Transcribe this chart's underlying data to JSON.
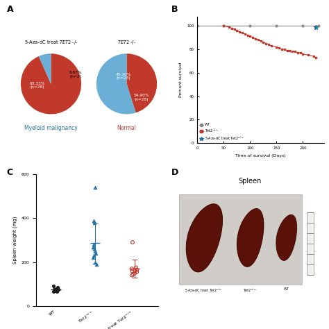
{
  "panel_A_label": "A",
  "panel_B_label": "B",
  "panel_C_label": "C",
  "panel_D_label": "D",
  "pie1_title": "5-Aza-dC treat ",
  "pie1_title_italic": "TET2",
  "pie1_title_end": " -/-",
  "pie1_subtitle": "Myeloid malignancy",
  "pie1_sizes": [
    93.33,
    6.67
  ],
  "pie1_colors": [
    "#c0392b",
    "#6baed6"
  ],
  "pie1_startangle": 90,
  "pie2_title_italic": "TET2",
  "pie2_title_end": " -/-",
  "pie2_subtitle": "Normal",
  "pie2_sizes": [
    45.1,
    54.9
  ],
  "pie2_colors": [
    "#c0392b",
    "#6baed6"
  ],
  "pie2_startangle": 90,
  "survival_xlabel": "Time of survival (Days)",
  "survival_ylabel": "Percent survival",
  "wt_spleen": [
    70,
    75,
    65,
    80,
    72,
    68,
    90,
    85,
    78,
    70,
    65,
    75,
    80,
    72,
    68
  ],
  "tet2_spleen": [
    270,
    230,
    250,
    380,
    390,
    240,
    220,
    280,
    260,
    200,
    190,
    270,
    540
  ],
  "aza_spleen": [
    160,
    170,
    150,
    290,
    140,
    155,
    165,
    175,
    145,
    160
  ],
  "spleen_ylabel": "Spleen weight (mg)",
  "color_wt": "#1a1a1a",
  "color_tet2": "#2471a3",
  "color_aza": "#c0392b",
  "spleen_photo_text": "Spleen"
}
